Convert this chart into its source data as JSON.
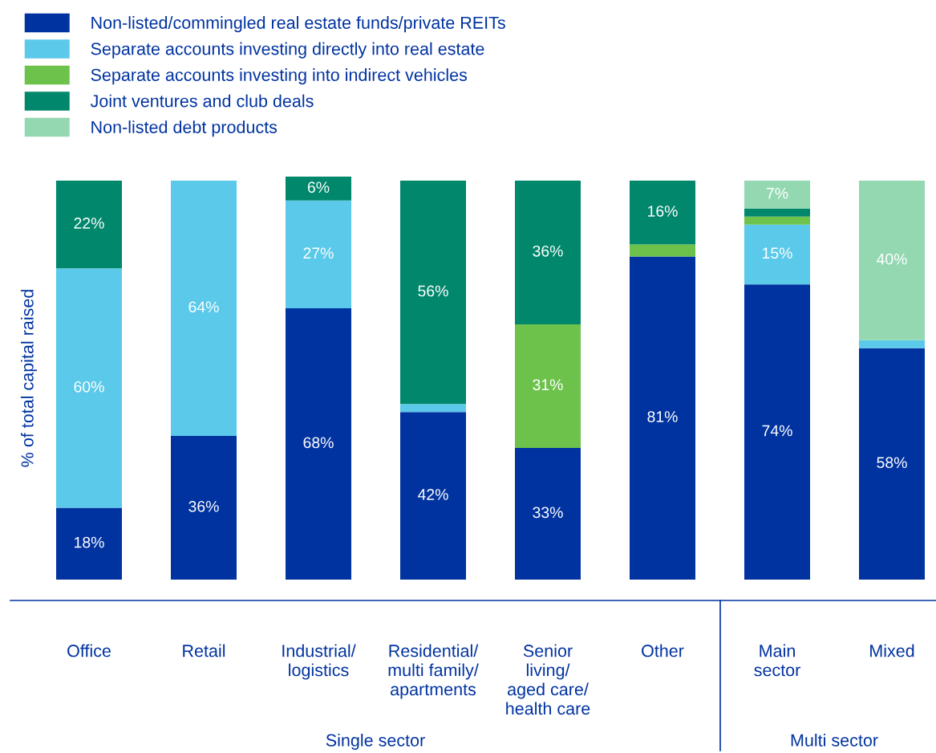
{
  "chart_data": {
    "type": "bar",
    "stacked": true,
    "ylabel": "% of total capital raised",
    "categories": [
      "Office",
      "Retail",
      "Industrial/\nlogistics",
      "Residential/\nmulti family/\napartments",
      "Senior\nliving/\naged care/\nhealth care",
      "Other",
      "Main\nsector",
      "Mixed"
    ],
    "series": [
      {
        "name": "Non-listed/commingled real estate funds/private REITs",
        "color": "#0033a0",
        "values": [
          18,
          36,
          68,
          42,
          33,
          81,
          74,
          58
        ],
        "value_labels": [
          "18%",
          "36%",
          "68%",
          "42%",
          "33%",
          "81%",
          "74%",
          "58%"
        ]
      },
      {
        "name": "Separate accounts investing directly into real estate",
        "color": "#5bc9e9",
        "values": [
          60,
          64,
          27,
          2,
          0,
          0,
          15,
          2
        ],
        "value_labels": [
          "60%",
          "64%",
          "27%",
          null,
          null,
          null,
          "15%",
          null
        ]
      },
      {
        "name": "Separate accounts investing into indirect vehicles",
        "color": "#6cc24a",
        "values": [
          0,
          0,
          0,
          0,
          31,
          3,
          2,
          0
        ],
        "value_labels": [
          null,
          null,
          null,
          null,
          "31%",
          null,
          null,
          null
        ]
      },
      {
        "name": "Joint ventures and club deals",
        "color": "#00876c",
        "values": [
          22,
          0,
          6,
          56,
          36,
          16,
          2,
          0
        ],
        "value_labels": [
          "22%",
          null,
          "6%",
          "56%",
          "36%",
          "16%",
          null,
          null
        ]
      },
      {
        "name": "Non-listed debt products",
        "color": "#93d8b1",
        "values": [
          0,
          0,
          0,
          0,
          0,
          0,
          7,
          40
        ],
        "value_labels": [
          null,
          null,
          null,
          null,
          null,
          null,
          "7%",
          "40%"
        ]
      }
    ],
    "annotations": [
      "Single sector",
      "Multi sector"
    ],
    "legend": "top left",
    "tick_labels": "x",
    "grid": false
  }
}
